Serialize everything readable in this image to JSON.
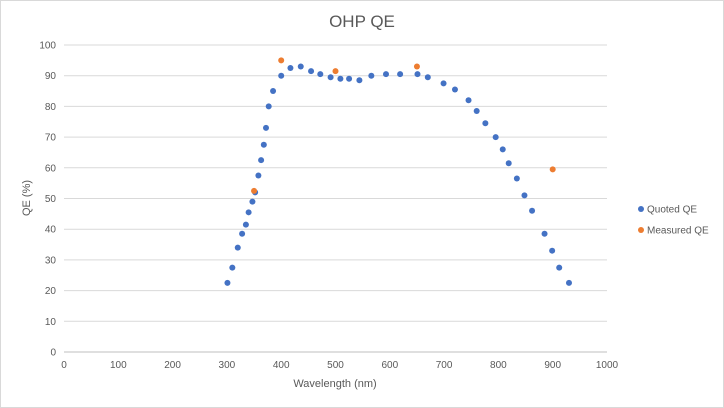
{
  "chart_data": {
    "type": "scatter",
    "title": "OHP QE",
    "xlabel": "Wavelength (nm)",
    "ylabel": "QE (%)",
    "xlim": [
      0,
      1000
    ],
    "ylim": [
      0,
      100
    ],
    "xticks": [
      0,
      100,
      200,
      300,
      400,
      500,
      600,
      700,
      800,
      900,
      1000
    ],
    "yticks": [
      0,
      10,
      20,
      30,
      40,
      50,
      60,
      70,
      80,
      90,
      100
    ],
    "grid": "horizontal",
    "legend_position": "right",
    "series": [
      {
        "name": "Quoted QE",
        "color": "#4472C4",
        "points": [
          [
            301,
            22.5
          ],
          [
            310,
            27.5
          ],
          [
            320,
            34
          ],
          [
            328,
            38.5
          ],
          [
            335,
            41.5
          ],
          [
            340,
            45.5
          ],
          [
            347,
            49
          ],
          [
            352,
            52
          ],
          [
            358,
            57.5
          ],
          [
            363,
            62.5
          ],
          [
            368,
            67.5
          ],
          [
            372,
            73
          ],
          [
            377,
            80
          ],
          [
            385,
            85
          ],
          [
            400,
            90
          ],
          [
            417,
            92.5
          ],
          [
            436,
            93
          ],
          [
            455,
            91.5
          ],
          [
            472,
            90.5
          ],
          [
            491,
            89.5
          ],
          [
            509,
            89
          ],
          [
            525,
            89
          ],
          [
            544,
            88.5
          ],
          [
            566,
            90
          ],
          [
            593,
            90.5
          ],
          [
            619,
            90.5
          ],
          [
            651,
            90.5
          ],
          [
            670,
            89.5
          ],
          [
            699,
            87.5
          ],
          [
            720,
            85.5
          ],
          [
            745,
            82
          ],
          [
            760,
            78.5
          ],
          [
            776,
            74.5
          ],
          [
            795,
            70
          ],
          [
            808,
            66
          ],
          [
            819,
            61.5
          ],
          [
            834,
            56.5
          ],
          [
            848,
            51
          ],
          [
            862,
            46
          ],
          [
            885,
            38.5
          ],
          [
            899,
            33
          ],
          [
            912,
            27.5
          ],
          [
            930,
            22.5
          ]
        ]
      },
      {
        "name": "Measured QE",
        "color": "#ED7D31",
        "points": [
          [
            350,
            52.5
          ],
          [
            400,
            95
          ],
          [
            500,
            91.5
          ],
          [
            650,
            93
          ],
          [
            900,
            59.5
          ]
        ]
      }
    ]
  }
}
